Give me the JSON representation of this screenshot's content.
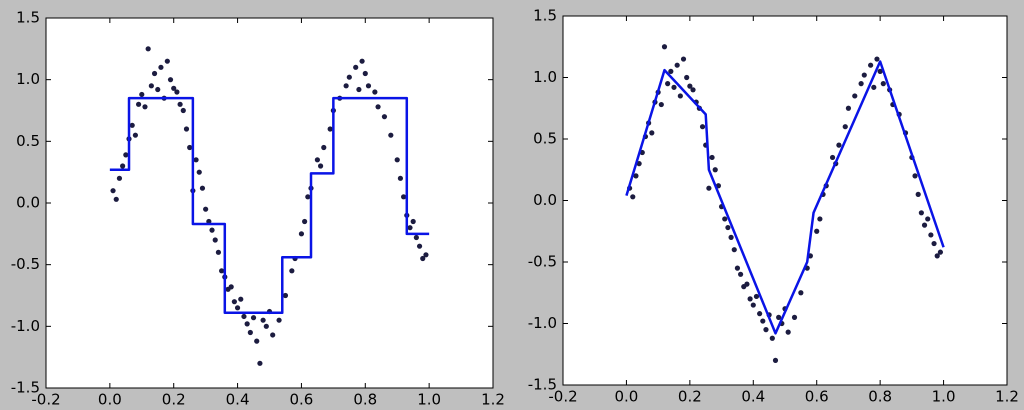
{
  "chart_data": [
    {
      "type": "scatter",
      "xlim": [
        -0.2,
        1.2
      ],
      "ylim": [
        -1.5,
        1.5
      ],
      "xticks": [
        -0.2,
        {
          "value": 0,
          "label": "0.0"
        },
        0.2,
        0.4,
        0.6,
        0.8,
        {
          "value": 1,
          "label": "1.0"
        },
        1.2
      ],
      "yticks": [
        -1.5,
        {
          "value": -1,
          "label": "-1.0"
        },
        -0.5,
        {
          "value": 0,
          "label": "0.0"
        },
        0.5,
        {
          "value": 1,
          "label": "1.0"
        },
        1.5
      ],
      "grid": false,
      "series": [
        {
          "mode": "markers",
          "color": "#1c1c40",
          "x": [
            0.01,
            0.02,
            0.03,
            0.04,
            0.05,
            0.06,
            0.07,
            0.08,
            0.09,
            0.1,
            0.11,
            0.12,
            0.13,
            0.14,
            0.15,
            0.16,
            0.17,
            0.18,
            0.19,
            0.2,
            0.21,
            0.22,
            0.23,
            0.24,
            0.25,
            0.26,
            0.27,
            0.28,
            0.29,
            0.3,
            0.31,
            0.32,
            0.33,
            0.34,
            0.35,
            0.36,
            0.37,
            0.38,
            0.39,
            0.4,
            0.41,
            0.42,
            0.43,
            0.44,
            0.45,
            0.46,
            0.47,
            0.48,
            0.49,
            0.5,
            0.51,
            0.53,
            0.55,
            0.57,
            0.58,
            0.6,
            0.61,
            0.62,
            0.63,
            0.65,
            0.66,
            0.67,
            0.69,
            0.7,
            0.72,
            0.74,
            0.75,
            0.77,
            0.78,
            0.79,
            0.8,
            0.81,
            0.83,
            0.84,
            0.86,
            0.88,
            0.9,
            0.91,
            0.92,
            0.93,
            0.94,
            0.95,
            0.96,
            0.97,
            0.98,
            0.99
          ],
          "values": [
            0.1,
            0.03,
            0.2,
            0.3,
            0.39,
            0.52,
            0.63,
            0.55,
            0.8,
            0.88,
            0.78,
            1.25,
            0.95,
            1.05,
            0.92,
            1.1,
            0.85,
            1.15,
            1.0,
            0.93,
            0.9,
            0.8,
            0.75,
            0.6,
            0.45,
            0.1,
            0.35,
            0.25,
            0.12,
            -0.05,
            -0.15,
            -0.22,
            -0.3,
            -0.4,
            -0.55,
            -0.6,
            -0.7,
            -0.68,
            -0.8,
            -0.85,
            -0.78,
            -0.92,
            -0.98,
            -1.05,
            -0.93,
            -1.12,
            -1.3,
            -0.95,
            -1.0,
            -0.88,
            -1.07,
            -0.95,
            -0.75,
            -0.55,
            -0.45,
            -0.25,
            -0.15,
            0.05,
            0.12,
            0.35,
            0.3,
            0.45,
            0.6,
            0.75,
            0.85,
            0.95,
            1.02,
            1.1,
            0.92,
            1.15,
            1.05,
            0.95,
            0.9,
            0.78,
            0.7,
            0.55,
            0.35,
            0.2,
            0.05,
            -0.1,
            -0.2,
            -0.15,
            -0.28,
            -0.35,
            -0.45,
            -0.42
          ]
        },
        {
          "mode": "lines",
          "color": "#0a14e6",
          "x": [
            0,
            0.06,
            0.06,
            0.26,
            0.26,
            0.36,
            0.36,
            0.54,
            0.54,
            0.63,
            0.63,
            0.7,
            0.7,
            0.93,
            0.93,
            1.0
          ],
          "values": [
            0.27,
            0.27,
            0.85,
            0.85,
            -0.17,
            -0.17,
            -0.89,
            -0.89,
            -0.44,
            -0.44,
            0.24,
            0.24,
            0.85,
            0.85,
            -0.25,
            -0.25
          ]
        }
      ]
    },
    {
      "type": "scatter",
      "xlim": [
        -0.2,
        1.2
      ],
      "ylim": [
        -1.5,
        1.5
      ],
      "xticks": [
        -0.2,
        {
          "value": 0,
          "label": "0.0"
        },
        0.2,
        0.4,
        0.6,
        0.8,
        {
          "value": 1,
          "label": "1.0"
        },
        1.2
      ],
      "yticks": [
        -1.5,
        {
          "value": -1,
          "label": "-1.0"
        },
        -0.5,
        {
          "value": 0,
          "label": "0.0"
        },
        0.5,
        {
          "value": 1,
          "label": "1.0"
        },
        1.5
      ],
      "grid": false,
      "series": [
        {
          "mode": "markers",
          "color": "#1c1c40",
          "x": [
            0.01,
            0.02,
            0.03,
            0.04,
            0.05,
            0.06,
            0.07,
            0.08,
            0.09,
            0.1,
            0.11,
            0.12,
            0.13,
            0.14,
            0.15,
            0.16,
            0.17,
            0.18,
            0.19,
            0.2,
            0.21,
            0.22,
            0.23,
            0.24,
            0.25,
            0.26,
            0.27,
            0.28,
            0.29,
            0.3,
            0.31,
            0.32,
            0.33,
            0.34,
            0.35,
            0.36,
            0.37,
            0.38,
            0.39,
            0.4,
            0.41,
            0.42,
            0.43,
            0.44,
            0.45,
            0.46,
            0.47,
            0.48,
            0.49,
            0.5,
            0.51,
            0.53,
            0.55,
            0.57,
            0.58,
            0.6,
            0.61,
            0.62,
            0.63,
            0.65,
            0.66,
            0.67,
            0.69,
            0.7,
            0.72,
            0.74,
            0.75,
            0.77,
            0.78,
            0.79,
            0.8,
            0.81,
            0.83,
            0.84,
            0.86,
            0.88,
            0.9,
            0.91,
            0.92,
            0.93,
            0.94,
            0.95,
            0.96,
            0.97,
            0.98,
            0.99
          ],
          "values": [
            0.1,
            0.03,
            0.2,
            0.3,
            0.39,
            0.52,
            0.63,
            0.55,
            0.8,
            0.88,
            0.78,
            1.25,
            0.95,
            1.05,
            0.92,
            1.1,
            0.85,
            1.15,
            1.0,
            0.93,
            0.9,
            0.8,
            0.75,
            0.6,
            0.45,
            0.1,
            0.35,
            0.25,
            0.12,
            -0.05,
            -0.15,
            -0.22,
            -0.3,
            -0.4,
            -0.55,
            -0.6,
            -0.7,
            -0.68,
            -0.8,
            -0.85,
            -0.78,
            -0.92,
            -0.98,
            -1.05,
            -0.93,
            -1.12,
            -1.3,
            -0.95,
            -1.0,
            -0.88,
            -1.07,
            -0.95,
            -0.75,
            -0.55,
            -0.45,
            -0.25,
            -0.15,
            0.05,
            0.12,
            0.35,
            0.3,
            0.45,
            0.6,
            0.75,
            0.85,
            0.95,
            1.02,
            1.1,
            0.92,
            1.15,
            1.05,
            0.95,
            0.9,
            0.78,
            0.7,
            0.55,
            0.35,
            0.2,
            0.05,
            -0.1,
            -0.2,
            -0.15,
            -0.28,
            -0.35,
            -0.45,
            -0.42
          ]
        },
        {
          "mode": "lines",
          "color": "#0a14e6",
          "x": [
            0,
            0.12,
            0.16,
            0.25,
            0.26,
            0.47,
            0.57,
            0.59,
            0.8,
            1.0
          ],
          "values": [
            0.04,
            1.06,
            0.95,
            0.7,
            0.25,
            -1.08,
            -0.5,
            -0.1,
            1.13,
            -0.38
          ]
        }
      ]
    }
  ]
}
